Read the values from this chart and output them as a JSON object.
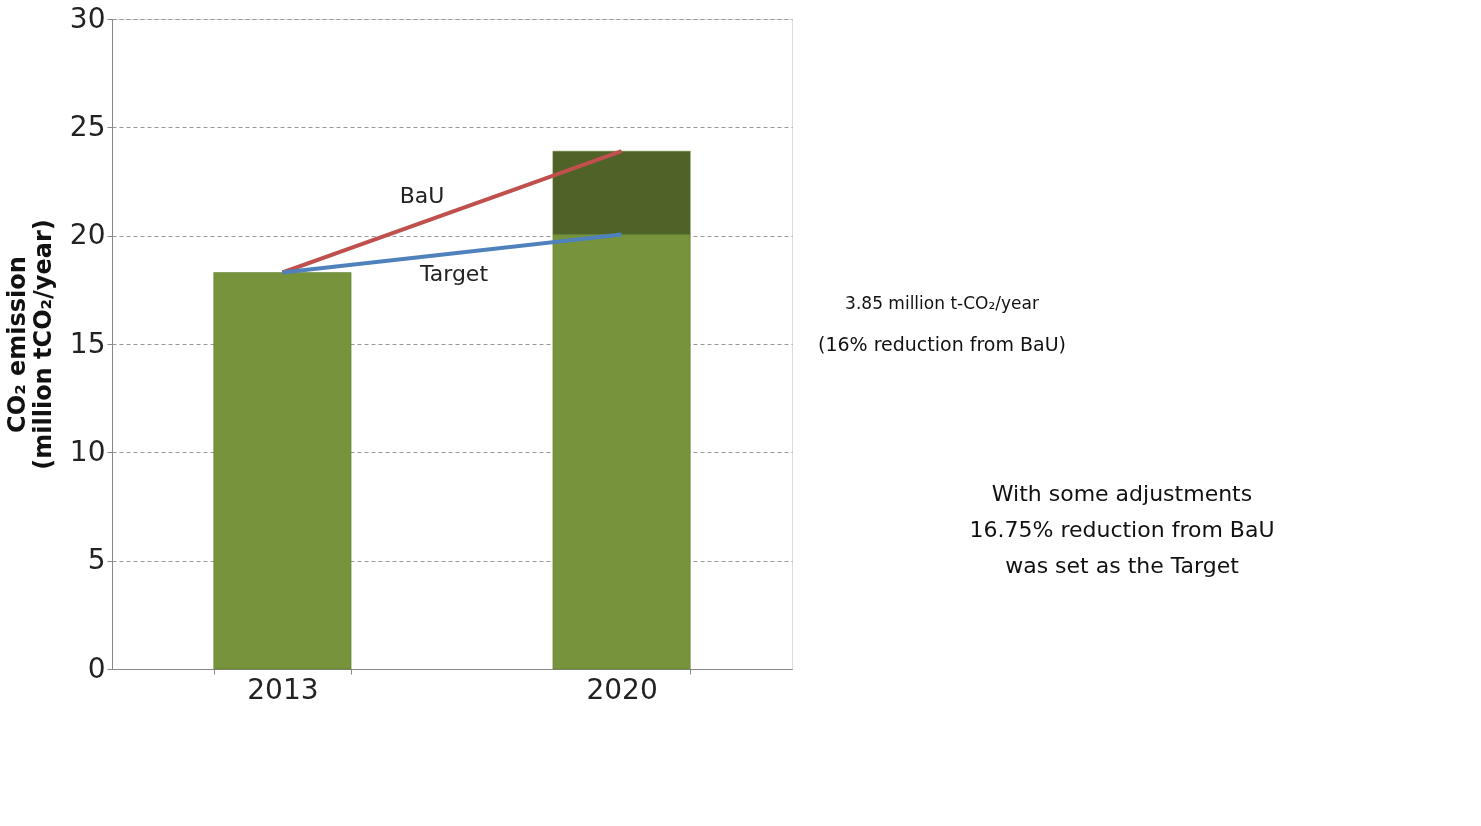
{
  "chart_data": {
    "type": "bar",
    "stacked": true,
    "ylabel": "CO₂ emission\n(million tCO₂/year)",
    "categories": [
      "2013",
      "2020"
    ],
    "series": [
      {
        "color": "#77933c",
        "values": [
          18.3,
          20.05
        ]
      },
      {
        "color": "#4f6228",
        "values": [
          null,
          3.85
        ]
      },
      {
        "type": "line",
        "name": "BaU",
        "color": "#c0504d",
        "values": [
          18.3,
          23.9
        ]
      },
      {
        "type": "line",
        "name": "Target",
        "color": "#4f81bd",
        "values": [
          18.3,
          20.05
        ]
      }
    ],
    "ylim": [
      0,
      30
    ],
    "yticks": [
      0,
      5,
      10,
      15,
      20,
      25,
      30
    ],
    "grid": "y",
    "marker": "none",
    "annotations": [
      "3.85 million t-CO₂/year",
      "(16% reduction from BaU)",
      "With some adjustments",
      "16.75% reduction from BaU",
      "was set as the Target"
    ]
  }
}
